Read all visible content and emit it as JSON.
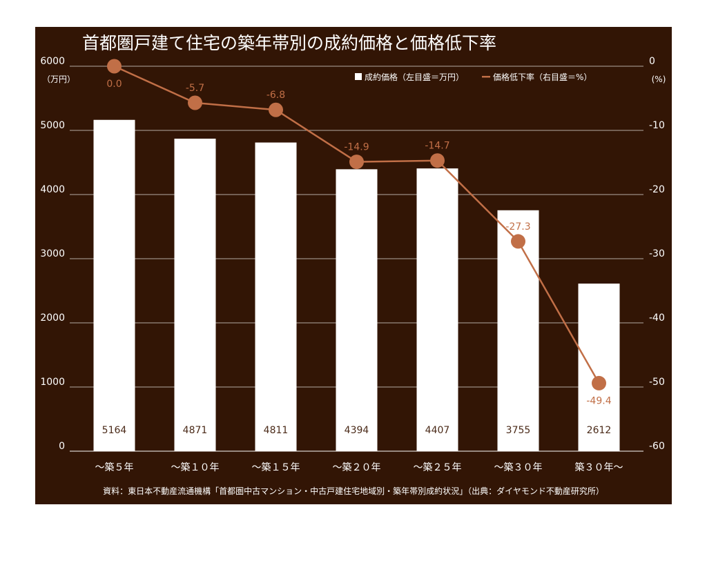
{
  "chart_data": {
    "type": "bar",
    "title": "首都圏戸建て住宅の築年帯別の成約価格と価格低下率",
    "categories": [
      "～築５年",
      "～築１０年",
      "～築１５年",
      "～築２０年",
      "～築２５年",
      "～築３０年",
      "築３０年～"
    ],
    "series": [
      {
        "name": "成約価格（左目盛＝万円）",
        "type": "bar",
        "axis": "left",
        "values": [
          5164,
          4871,
          4811,
          4394,
          4407,
          3755,
          2612
        ],
        "labels": [
          "5164",
          "4871",
          "4811",
          "4394",
          "4407",
          "3755",
          "2612"
        ]
      },
      {
        "name": "価格低下率（右目盛＝%）",
        "type": "line",
        "axis": "right",
        "values": [
          0.0,
          -5.7,
          -6.8,
          -14.9,
          -14.7,
          -27.3,
          -49.4
        ],
        "labels": [
          "0.0",
          "-5.7",
          "-6.8",
          "-14.9",
          "-14.7",
          "-27.3",
          "-49.4"
        ]
      }
    ],
    "left_axis": {
      "unit": "（万円）",
      "ylim": [
        0,
        6000
      ],
      "ticks": [
        "6000",
        "5000",
        "4000",
        "3000",
        "2000",
        "1000",
        "0"
      ]
    },
    "right_axis": {
      "unit": "(%)",
      "ylim": [
        -60,
        0
      ],
      "ticks": [
        "0",
        "-10",
        "-20",
        "-30",
        "-40",
        "-50",
        "-60"
      ]
    },
    "grid": true,
    "legend_position": "top-right",
    "source": "資料：東日本不動産流通機構「首都圏中古マンション・中古戸建住宅地域別・築年帯別成約状況」（出典：ダイヤモンド不動産研究所）",
    "colors": {
      "background": "#321505",
      "bar": "#ffffff",
      "line": "#c16f47",
      "text": "#ffffff",
      "grid": "#ffffff"
    }
  }
}
